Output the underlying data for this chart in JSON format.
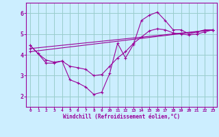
{
  "bg_color": "#cceeff",
  "line_color": "#990099",
  "grid_color": "#99cccc",
  "xlabel": "Windchill (Refroidissement éolien,°C)",
  "xlim": [
    -0.5,
    23.5
  ],
  "ylim": [
    1.5,
    6.5
  ],
  "yticks": [
    2,
    3,
    4,
    5,
    6
  ],
  "xticks": [
    0,
    1,
    2,
    3,
    4,
    5,
    6,
    7,
    8,
    9,
    10,
    11,
    12,
    13,
    14,
    15,
    16,
    17,
    18,
    19,
    20,
    21,
    22,
    23
  ],
  "series": [
    {
      "x": [
        0,
        1,
        2,
        3,
        4,
        5,
        6,
        7,
        8,
        9,
        10,
        11,
        12,
        13,
        14,
        15,
        16,
        17,
        18,
        19,
        20,
        21,
        22,
        23
      ],
      "y": [
        4.45,
        4.05,
        3.6,
        3.6,
        3.7,
        2.8,
        2.65,
        2.45,
        2.1,
        2.2,
        3.1,
        4.55,
        3.85,
        4.5,
        5.65,
        5.9,
        6.05,
        5.65,
        5.2,
        5.2,
        5.0,
        5.1,
        5.2,
        5.2
      ]
    },
    {
      "x": [
        0,
        1,
        2,
        3,
        4,
        5,
        6,
        7,
        8,
        9,
        10,
        11,
        12,
        13,
        14,
        15,
        16,
        17,
        18,
        19,
        20,
        21,
        22,
        23
      ],
      "y": [
        4.45,
        4.05,
        3.75,
        3.65,
        3.7,
        3.45,
        3.38,
        3.3,
        3.0,
        3.05,
        3.45,
        3.85,
        4.15,
        4.55,
        4.85,
        5.15,
        5.25,
        5.2,
        5.05,
        5.0,
        4.95,
        5.0,
        5.1,
        5.2
      ]
    },
    {
      "x": [
        0,
        23
      ],
      "y": [
        4.3,
        5.2
      ]
    },
    {
      "x": [
        0,
        23
      ],
      "y": [
        4.15,
        5.2
      ]
    }
  ]
}
